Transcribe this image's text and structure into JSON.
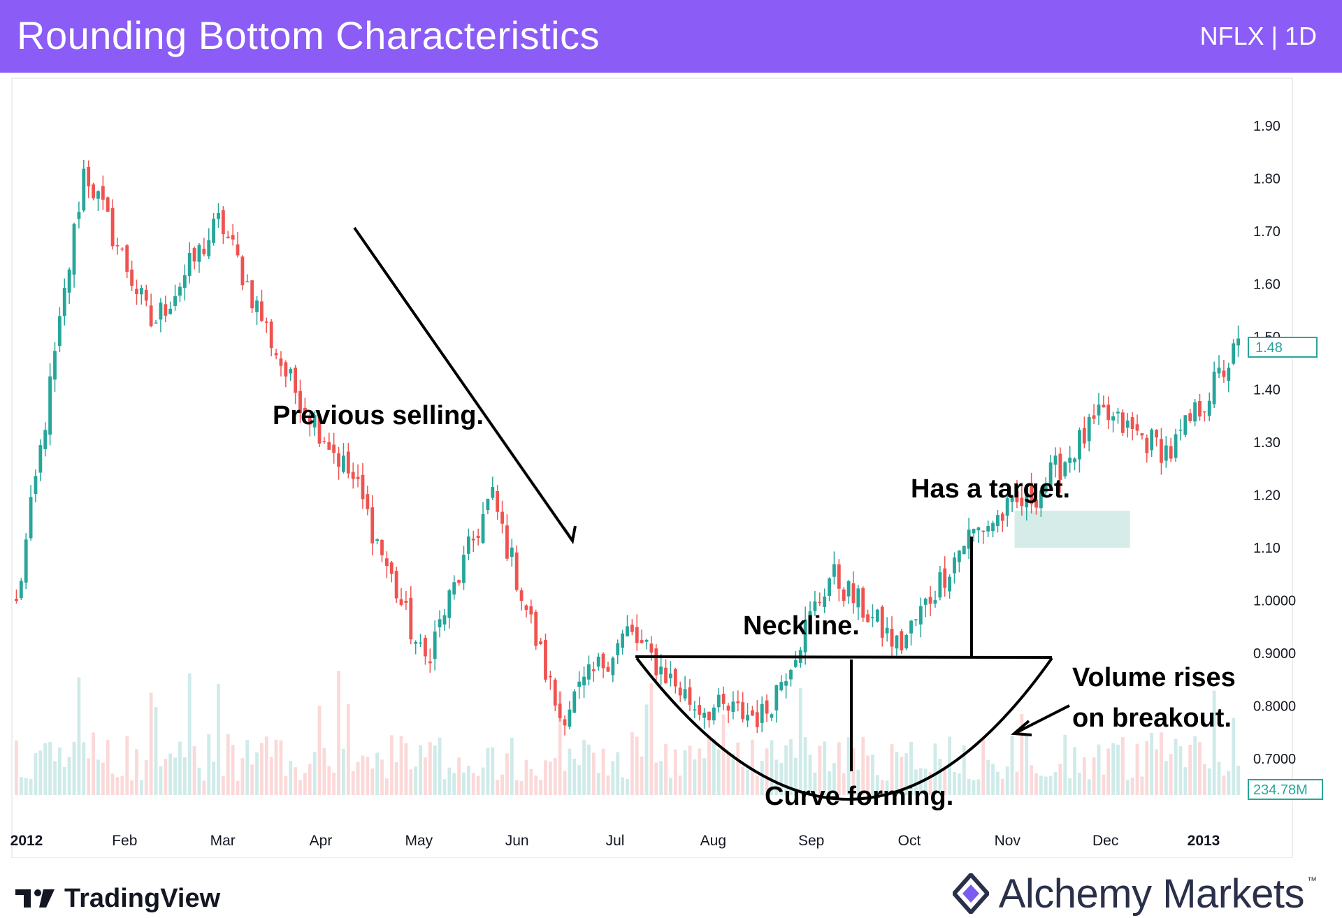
{
  "header": {
    "title": "Rounding Bottom Characteristics",
    "ticker": "NFLX | 1D"
  },
  "colors": {
    "header_bg": "#8b5cf6",
    "up": "#26a69a",
    "down": "#ef5350",
    "target_zone": "#cfe9e4",
    "annotation": "#000000"
  },
  "chart_data": {
    "type": "candlestick",
    "title": "",
    "y_axis": {
      "ticks": [
        "1.90",
        "1.80",
        "1.70",
        "1.60",
        "1.50",
        "1.40",
        "1.30",
        "1.20",
        "1.10",
        "1.0000",
        "0.9000",
        "0.8000",
        "0.7000"
      ],
      "ylim": [
        0.63,
        1.95
      ],
      "position": "right"
    },
    "x_axis": {
      "ticks": [
        "2012",
        "Feb",
        "Mar",
        "Apr",
        "May",
        "Jun",
        "Jul",
        "Aug",
        "Sep",
        "Oct",
        "Nov",
        "Dec",
        "2013"
      ]
    },
    "current_price_label": "1.48",
    "current_volume_label": "234.78M",
    "price_path_keypoints": [
      [
        "2012",
        0.99
      ],
      [
        "Feb",
        1.82
      ],
      [
        "Mar",
        1.52
      ],
      [
        "Apr",
        1.72
      ],
      [
        "Apr-end",
        1.42
      ],
      [
        "May",
        1.22
      ],
      [
        "Jun",
        0.88
      ],
      [
        "Jul",
        1.2
      ],
      [
        "Aug",
        0.78
      ],
      [
        "Sep",
        0.94
      ],
      [
        "Sep-mid",
        0.8
      ],
      [
        "Oct",
        0.78
      ],
      [
        "Oct-mid",
        1.05
      ],
      [
        "Nov",
        0.91
      ],
      [
        "Nov-mid",
        1.12
      ],
      [
        "Dec",
        1.2
      ],
      [
        "Dec-mid",
        1.35
      ],
      [
        "2013",
        1.28
      ],
      [
        "2013-end",
        1.48
      ]
    ],
    "annotations": [
      "Previous selling.",
      "Neckline.",
      "Curve forming.",
      "Has a target.",
      "Volume rises\non breakout."
    ],
    "legend": "none",
    "grid": false
  },
  "annotations": {
    "previous_selling": "Previous selling.",
    "neckline": "Neckline.",
    "curve_forming": "Curve forming.",
    "has_target": "Has a target.",
    "volume_line1": "Volume rises",
    "volume_line2": "on breakout."
  },
  "footer": {
    "left_brand": "TradingView",
    "right_brand": "Alchemy Markets",
    "right_tm": "™",
    "tv_logo_icon": "tradingview-logo-icon",
    "am_logo_icon": "alchemy-markets-logo-icon"
  }
}
